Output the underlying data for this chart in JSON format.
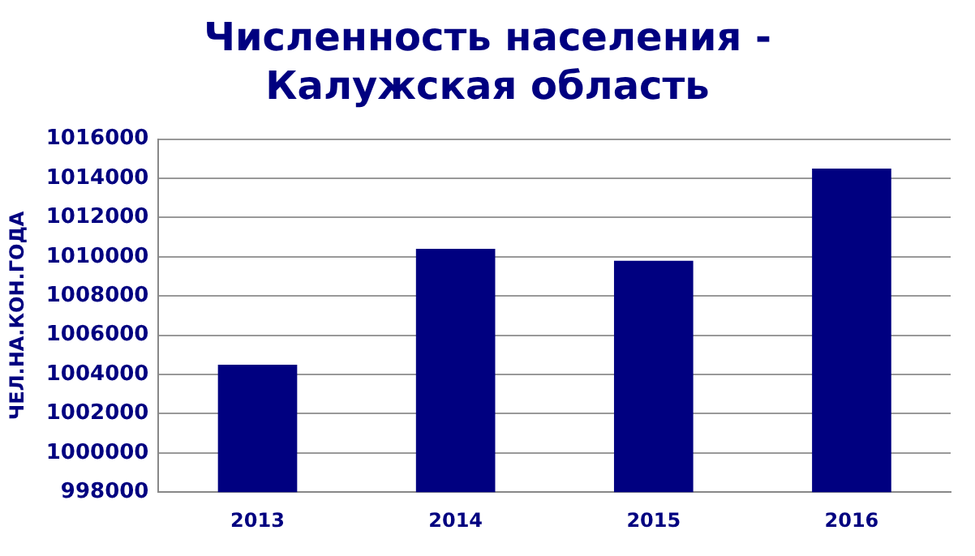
{
  "chart_data": {
    "type": "bar",
    "title": "Численность населения  -\nКалужская область",
    "ylabel": "ЧЕЛ.НА.КОН.ГОДА",
    "categories": [
      "2013",
      "2014",
      "2015",
      "2016"
    ],
    "series": [
      {
        "color": "#000080",
        "values": [
          1004500,
          1010400,
          1009800,
          1014500
        ]
      }
    ],
    "ylim": [
      998000,
      1016000
    ],
    "yticks": [
      998000,
      1000000,
      1002000,
      1004000,
      1006000,
      1008000,
      1010000,
      1012000,
      1014000,
      1016000
    ],
    "grid": "y",
    "legend": false
  }
}
